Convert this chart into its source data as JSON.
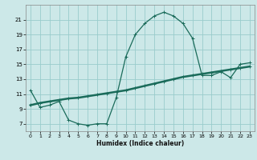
{
  "title": "",
  "xlabel": "Humidex (Indice chaleur)",
  "bg_color": "#cce8e8",
  "grid_color": "#99cccc",
  "line_color": "#1a6b5a",
  "xlim": [
    -0.5,
    23.5
  ],
  "ylim": [
    6,
    23
  ],
  "xticks": [
    0,
    1,
    2,
    3,
    4,
    5,
    6,
    7,
    8,
    9,
    10,
    11,
    12,
    13,
    14,
    15,
    16,
    17,
    18,
    19,
    20,
    21,
    22,
    23
  ],
  "yticks": [
    7,
    9,
    11,
    13,
    15,
    17,
    19,
    21
  ],
  "curve1_x": [
    0,
    1,
    2,
    3,
    4,
    5,
    6,
    7,
    8,
    9,
    10,
    11,
    12,
    13,
    14,
    15,
    16,
    17,
    18,
    19,
    20,
    21,
    22,
    23
  ],
  "curve1_y": [
    11.5,
    9.2,
    9.5,
    10.0,
    7.5,
    7.0,
    6.8,
    7.0,
    7.0,
    10.5,
    16.0,
    19.0,
    20.5,
    21.5,
    22.0,
    21.5,
    20.5,
    18.5,
    13.5,
    13.5,
    14.0,
    13.2,
    15.0,
    15.2
  ],
  "curve2_x": [
    0,
    1,
    2,
    3,
    4,
    5,
    6,
    7,
    8,
    9,
    10,
    11,
    12,
    13,
    14,
    15,
    16,
    17,
    18,
    19,
    20,
    21,
    22,
    23
  ],
  "curve2_y": [
    9.5,
    9.8,
    10.0,
    10.2,
    10.4,
    10.5,
    10.7,
    10.9,
    11.1,
    11.3,
    11.5,
    11.8,
    12.1,
    12.4,
    12.7,
    13.0,
    13.3,
    13.5,
    13.7,
    13.9,
    14.1,
    14.3,
    14.5,
    14.7
  ]
}
